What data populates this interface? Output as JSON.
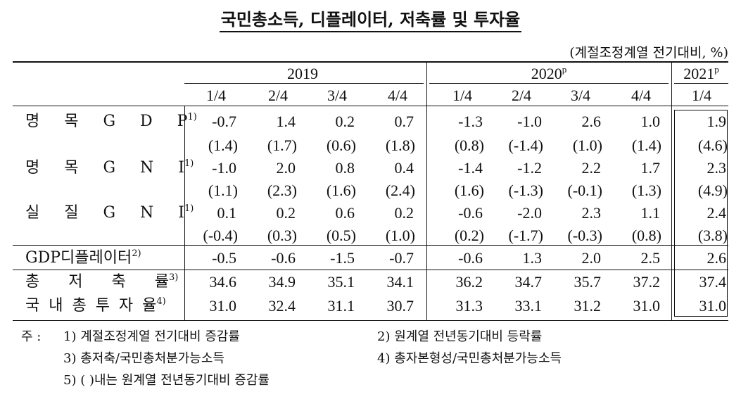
{
  "title": "국민총소득, 디플레이터, 저축률 및 투자율",
  "unit": "(계절조정계열 전기대비, %)",
  "years": [
    {
      "label": "2019",
      "sup": ""
    },
    {
      "label": "2020",
      "sup": "p"
    },
    {
      "label": "2021",
      "sup": "p"
    }
  ],
  "quarters": [
    "1/4",
    "2/4",
    "3/4",
    "4/4",
    "1/4",
    "2/4",
    "3/4",
    "4/4",
    "1/4"
  ],
  "rows": [
    {
      "label": "명 목 G D P",
      "sup": "1)",
      "values": [
        "-0.7",
        "1.4",
        "0.2",
        "0.7",
        "-1.3",
        "-1.0",
        "2.6",
        "1.0",
        "1.9"
      ],
      "sub": [
        "(1.4)",
        "(1.7)",
        "(0.6)",
        "(1.8)",
        "(0.8)",
        "(-1.4)",
        "(1.0)",
        "(1.4)",
        "(4.6)"
      ]
    },
    {
      "label": "명 목 G N I",
      "sup": "1)",
      "values": [
        "-1.0",
        "2.0",
        "0.8",
        "0.4",
        "-1.4",
        "-1.2",
        "2.2",
        "1.7",
        "2.3"
      ],
      "sub": [
        "(1.1)",
        "(2.3)",
        "(1.6)",
        "(2.4)",
        "(1.6)",
        "(-1.3)",
        "(-0.1)",
        "(1.3)",
        "(4.9)"
      ]
    },
    {
      "label": "실 질 G N I",
      "sup": "1)",
      "values": [
        "0.1",
        "0.2",
        "0.6",
        "0.2",
        "-0.6",
        "-2.0",
        "2.3",
        "1.1",
        "2.4"
      ],
      "sub": [
        "(-0.4)",
        "(0.3)",
        "(0.5)",
        "(1.0)",
        "(0.2)",
        "(-1.7)",
        "(-0.3)",
        "(0.8)",
        "(3.8)"
      ]
    },
    {
      "label": "GDP디플레이터",
      "sup": "2)",
      "values": [
        "-0.5",
        "-0.6",
        "-1.5",
        "-0.7",
        "-0.6",
        "1.3",
        "2.0",
        "2.5",
        "2.6"
      ]
    },
    {
      "label": "총 저 축 률",
      "sup": "3)",
      "values": [
        "34.6",
        "34.9",
        "35.1",
        "34.1",
        "36.2",
        "34.7",
        "35.7",
        "37.2",
        "37.4"
      ]
    },
    {
      "label": "국 내 총 투 자 율",
      "sup": "4)",
      "values": [
        "31.0",
        "32.4",
        "31.1",
        "30.7",
        "31.3",
        "33.1",
        "31.2",
        "31.0",
        "31.0"
      ]
    }
  ],
  "notes": {
    "prefix": "주 :",
    "n1": "1)  계절조정계열 전기대비 증감률",
    "n2": "2)  원계열 전년동기대비 등락률",
    "n3": "3)  총저축/국민총처분가능소득",
    "n4": "4)  총자본형성/국민총처분가능소득",
    "n5": "5)  (   )내는 원계열 전년동기대비 증감률"
  }
}
